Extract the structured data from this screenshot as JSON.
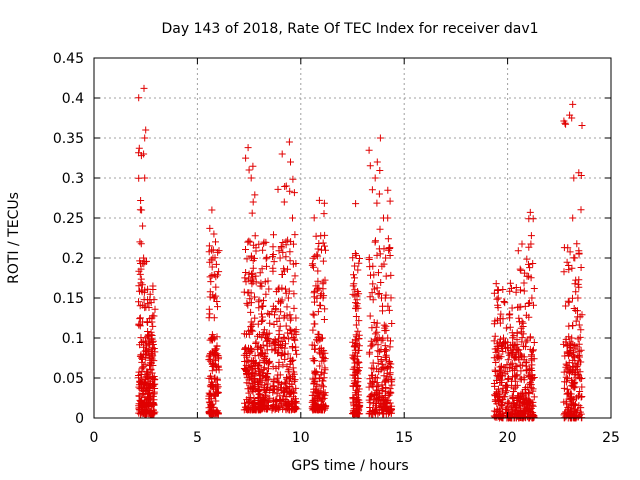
{
  "chart_data": {
    "type": "scatter",
    "title": "Day 143 of 2018, Rate Of TEC Index for receiver dav1",
    "xlabel": "GPS time / hours",
    "ylabel": "ROTI / TECUs",
    "xlim": [
      0,
      25
    ],
    "ylim": [
      0,
      0.45
    ],
    "x_ticks": [
      0,
      5,
      10,
      15,
      20,
      25
    ],
    "x_tick_labels": [
      "0",
      "5",
      "10",
      "15",
      "20",
      "25"
    ],
    "y_ticks": [
      0,
      0.05,
      0.1,
      0.15,
      0.2,
      0.25,
      0.3,
      0.35,
      0.4,
      0.45
    ],
    "y_tick_labels": [
      "0",
      "0.05",
      "0.1",
      "0.15",
      "0.2",
      "0.25",
      "0.3",
      "0.35",
      "0.4",
      "0.45"
    ],
    "grid": true,
    "marker": "plus",
    "color": "#e00000",
    "clusters": [
      {
        "x_range": [
          2.15,
          2.55
        ],
        "y_range": [
          0.005,
          0.41
        ],
        "points": [
          [
            2.42,
            0.412
          ],
          [
            2.5,
            0.36
          ],
          [
            2.45,
            0.35
          ],
          [
            2.4,
            0.33
          ],
          [
            2.45,
            0.3
          ],
          [
            2.3,
            0.26
          ],
          [
            2.35,
            0.24
          ],
          [
            2.4,
            0.2
          ],
          [
            2.3,
            0.16
          ],
          [
            2.35,
            0.12
          ],
          [
            2.4,
            0.08
          ],
          [
            2.3,
            0.05
          ]
        ]
      },
      {
        "x_range": [
          2.55,
          2.95
        ],
        "y_range": [
          0.005,
          0.165
        ],
        "points": [
          [
            2.85,
            0.165
          ],
          [
            2.9,
            0.148
          ],
          [
            2.8,
            0.12
          ],
          [
            2.75,
            0.06
          ],
          [
            2.85,
            0.03
          ]
        ]
      },
      {
        "x_range": [
          5.55,
          6.05
        ],
        "y_range": [
          0.005,
          0.26
        ],
        "points": [
          [
            5.7,
            0.26
          ],
          [
            5.8,
            0.23
          ],
          [
            5.75,
            0.2
          ],
          [
            5.8,
            0.15
          ],
          [
            5.7,
            0.1
          ],
          [
            5.85,
            0.05
          ]
        ]
      },
      {
        "x_range": [
          7.25,
          7.85
        ],
        "y_range": [
          0.01,
          0.34
        ],
        "points": [
          [
            7.45,
            0.338
          ],
          [
            7.5,
            0.31
          ],
          [
            7.6,
            0.3
          ],
          [
            7.7,
            0.27
          ],
          [
            7.55,
            0.22
          ],
          [
            7.5,
            0.18
          ],
          [
            7.6,
            0.12
          ],
          [
            7.45,
            0.06
          ]
        ]
      },
      {
        "x_range": [
          7.9,
          8.5
        ],
        "y_range": [
          0.01,
          0.22
        ],
        "points": [
          [
            8.2,
            0.218
          ],
          [
            8.1,
            0.13
          ],
          [
            8.3,
            0.05
          ]
        ]
      },
      {
        "x_range": [
          8.6,
          9.8
        ],
        "y_range": [
          0.01,
          0.345
        ],
        "points": [
          [
            9.45,
            0.345
          ],
          [
            9.1,
            0.33
          ],
          [
            9.5,
            0.32
          ],
          [
            9.3,
            0.29
          ],
          [
            9.2,
            0.27
          ],
          [
            9.6,
            0.25
          ],
          [
            9.0,
            0.2
          ],
          [
            9.4,
            0.15
          ],
          [
            9.2,
            0.1
          ],
          [
            9.5,
            0.05
          ]
        ]
      },
      {
        "x_range": [
          10.55,
          11.2
        ],
        "y_range": [
          0.01,
          0.272
        ],
        "points": [
          [
            10.9,
            0.272
          ],
          [
            11.0,
            0.21
          ],
          [
            10.8,
            0.16
          ],
          [
            11.05,
            0.1
          ],
          [
            10.9,
            0.05
          ]
        ]
      },
      {
        "x_range": [
          12.5,
          12.85
        ],
        "y_range": [
          0.005,
          0.268
        ],
        "points": [
          [
            12.65,
            0.268
          ],
          [
            12.6,
            0.19
          ],
          [
            12.7,
            0.14
          ],
          [
            12.65,
            0.05
          ]
        ]
      },
      {
        "x_range": [
          13.3,
          14.4
        ],
        "y_range": [
          0.005,
          0.35
        ],
        "points": [
          [
            13.85,
            0.35
          ],
          [
            13.7,
            0.32
          ],
          [
            13.6,
            0.3
          ],
          [
            13.8,
            0.28
          ],
          [
            14.0,
            0.25
          ],
          [
            14.2,
            0.25
          ],
          [
            14.1,
            0.2
          ],
          [
            13.9,
            0.15
          ],
          [
            14.2,
            0.1
          ],
          [
            13.7,
            0.05
          ]
        ]
      },
      {
        "x_range": [
          19.35,
          20.5
        ],
        "y_range": [
          0.0,
          0.17
        ],
        "points": [
          [
            19.45,
            0.168
          ],
          [
            19.55,
            0.15
          ],
          [
            20.1,
            0.13
          ],
          [
            19.8,
            0.1
          ],
          [
            20.2,
            0.08
          ],
          [
            19.9,
            0.04
          ]
        ]
      },
      {
        "x_range": [
          20.5,
          21.3
        ],
        "y_range": [
          0.0,
          0.257
        ],
        "points": [
          [
            21.1,
            0.257
          ],
          [
            21.15,
            0.228
          ],
          [
            21.1,
            0.1
          ],
          [
            20.9,
            0.06
          ],
          [
            21.0,
            0.02
          ]
        ]
      },
      {
        "x_range": [
          22.7,
          23.6
        ],
        "y_range": [
          0.0,
          0.392
        ],
        "points": [
          [
            23.15,
            0.392
          ],
          [
            23.1,
            0.375
          ],
          [
            23.2,
            0.3
          ],
          [
            23.15,
            0.25
          ],
          [
            23.25,
            0.2
          ],
          [
            23.4,
            0.15
          ],
          [
            23.1,
            0.1
          ],
          [
            23.3,
            0.05
          ]
        ]
      }
    ]
  }
}
